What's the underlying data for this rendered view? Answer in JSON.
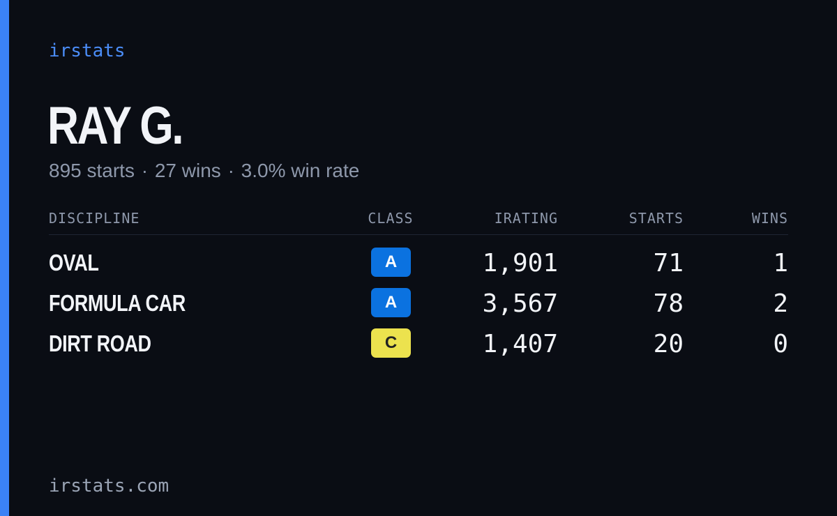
{
  "brand": "irstats",
  "player": {
    "name": "RAY G.",
    "starts_text": "895 starts",
    "wins_text": "27 wins",
    "winrate_text": "3.0% win rate",
    "separator": "·"
  },
  "table": {
    "headers": {
      "discipline": "DISCIPLINE",
      "class": "CLASS",
      "irating": "IRATING",
      "starts": "STARTS",
      "wins": "WINS"
    },
    "rows": [
      {
        "discipline": "OVAL",
        "class": "A",
        "irating": "1,901",
        "starts": "71",
        "wins": "1"
      },
      {
        "discipline": "FORMULA CAR",
        "class": "A",
        "irating": "3,567",
        "starts": "78",
        "wins": "2"
      },
      {
        "discipline": "DIRT ROAD",
        "class": "C",
        "irating": "1,407",
        "starts": "20",
        "wins": "0"
      }
    ]
  },
  "footer": "irstats.com",
  "colors": {
    "background": "#0a0d14",
    "accent": "#3b82f6",
    "class_a": "#0b72e0",
    "class_c": "#ece24e"
  }
}
